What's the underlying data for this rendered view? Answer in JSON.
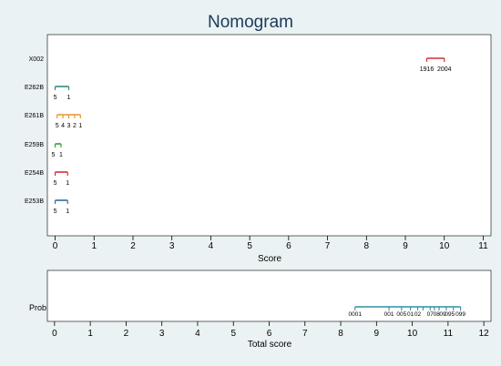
{
  "chart_data": {
    "type": "nomogram",
    "title": "Nomogram",
    "colors": {
      "background": "#eaf2f3",
      "plot_bg": "#ffffff",
      "title": "#1a3a5c",
      "axis": "#000000",
      "X002": "#d62d3a",
      "E262B": "#2e8b7f",
      "E261B": "#e8962a",
      "E259B": "#3a9a3a",
      "E254B": "#d62d3a",
      "E253B": "#2f6fa3",
      "Prob": "#2f8fa5"
    },
    "top_panel": {
      "xlabel": "Score",
      "xlim": [
        -0.2,
        11.2
      ],
      "ticks": [
        0,
        1,
        2,
        3,
        4,
        5,
        6,
        7,
        8,
        9,
        10,
        11
      ],
      "variables": [
        {
          "name": "X002",
          "segment": [
            9.55,
            10.0
          ],
          "ticks": [
            9.55,
            10.0
          ],
          "labels": [
            {
              "text": "1916",
              "x": 9.55
            },
            {
              "text": "2004",
              "x": 10.0
            }
          ]
        },
        {
          "name": "E262B",
          "segment": [
            0.0,
            0.35
          ],
          "ticks": [
            0.0,
            0.35
          ],
          "labels": [
            {
              "text": "5",
              "x": 0.0
            },
            {
              "text": "1",
              "x": 0.35
            }
          ]
        },
        {
          "name": "E261B",
          "segment": [
            0.05,
            0.65
          ],
          "ticks": [
            0.05,
            0.2,
            0.35,
            0.5,
            0.65
          ],
          "labels": [
            {
              "text": "5",
              "x": 0.05
            },
            {
              "text": "4",
              "x": 0.2
            },
            {
              "text": "3",
              "x": 0.35
            },
            {
              "text": "2",
              "x": 0.5
            },
            {
              "text": "1",
              "x": 0.65
            }
          ]
        },
        {
          "name": "E259B",
          "segment": [
            0.0,
            0.15
          ],
          "ticks": [
            0.0,
            0.15
          ],
          "labels": [
            {
              "text": "5",
              "x": -0.05
            },
            {
              "text": "1",
              "x": 0.15
            }
          ]
        },
        {
          "name": "E254B",
          "segment": [
            0.0,
            0.32
          ],
          "ticks": [
            0.0,
            0.32
          ],
          "labels": [
            {
              "text": "5",
              "x": 0.0
            },
            {
              "text": "1",
              "x": 0.32
            }
          ]
        },
        {
          "name": "E253B",
          "segment": [
            0.0,
            0.32
          ],
          "ticks": [
            0.0,
            0.32
          ],
          "labels": [
            {
              "text": "5",
              "x": 0.0
            },
            {
              "text": "1",
              "x": 0.32
            }
          ]
        }
      ]
    },
    "bottom_panel": {
      "xlabel": "Total score",
      "xlim": [
        -0.2,
        12.2
      ],
      "ticks": [
        0,
        1,
        2,
        3,
        4,
        5,
        6,
        7,
        8,
        9,
        10,
        11,
        12
      ],
      "variable": {
        "name": "Prob",
        "segment": [
          8.4,
          11.35
        ],
        "ticks": [
          8.4,
          9.35,
          9.7,
          9.95,
          10.15,
          10.3,
          10.5,
          10.62,
          10.75,
          10.95,
          11.15,
          11.35
        ],
        "labels": [
          {
            "text": "0001",
            "x": 8.4
          },
          {
            "text": "001",
            "x": 9.35
          },
          {
            "text": "005",
            "x": 9.7
          },
          {
            "text": "01",
            "x": 9.95
          },
          {
            "text": "02",
            "x": 10.15
          },
          {
            "text": "07",
            "x": 10.5
          },
          {
            "text": "08",
            "x": 10.68
          },
          {
            "text": "09",
            "x": 10.85
          },
          {
            "text": "095",
            "x": 11.05
          },
          {
            "text": "099",
            "x": 11.35
          }
        ]
      }
    }
  }
}
